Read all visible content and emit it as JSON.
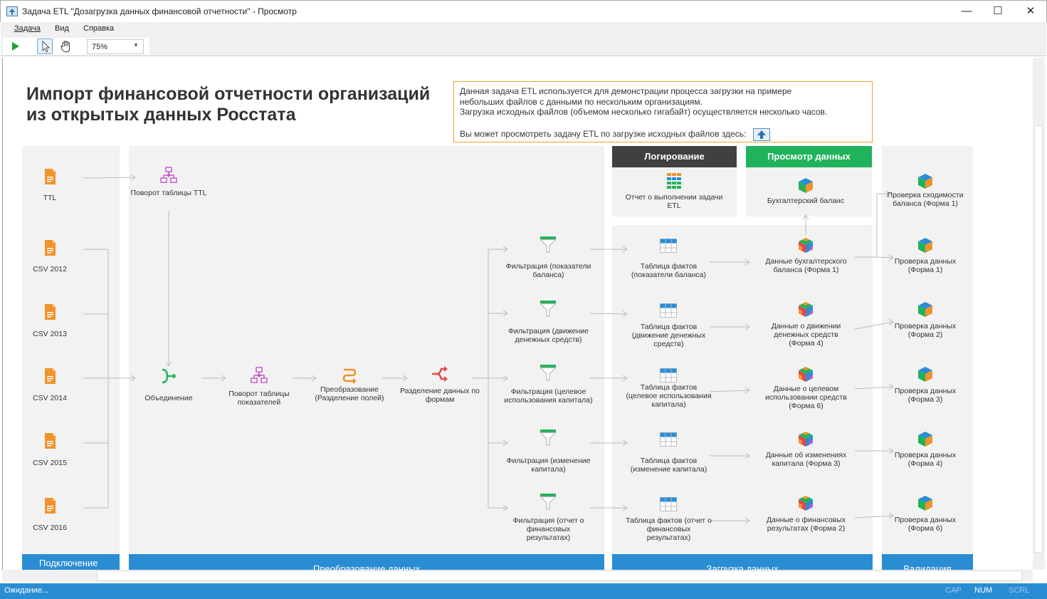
{
  "window": {
    "title": "Задача ETL \"Дозагрузка данных финансовой отчетности\" - Просмотр",
    "minimize": "—",
    "maximize": "☐",
    "close": "✕"
  },
  "menu": [
    "Задача",
    "Вид",
    "Справка"
  ],
  "toolbar": {
    "zoom": "75%"
  },
  "page": {
    "title_line1": "Импорт финансовой отчетности организаций",
    "title_line2": "из открытых данных Росстата",
    "info_lines": [
      "Данная задача ETL используется для демонстрации процесса загрузки на примере",
      "небольших файлов с данными по нескольким организациям.",
      "Загрузка исходных файлов (объемом несколько гигабайт) осуществляется несколько часов.",
      "Вы может просмотреть задачу ETL по загрузке исходных файлов здесь:"
    ]
  },
  "sections": {
    "logging": "Логирование",
    "view": "Просмотр данных",
    "connect": "Подключение",
    "transform": "Преобразование данных",
    "load": "Загрузка данных",
    "validate": "Валидация"
  },
  "colors": {
    "accent": "#2a8dd4",
    "logging_header": "#404040",
    "view_header": "#21b35b",
    "file": "#f0932b",
    "filter": "#21b35b",
    "pivot": "#c259c9",
    "split": "#e8474a",
    "transform": "#f0932b"
  },
  "nodes": [
    {
      "label": "TTL",
      "icon": "file-icon"
    },
    {
      "label": "CSV 2012",
      "icon": "file-icon"
    },
    {
      "label": "CSV 2013",
      "icon": "file-icon"
    },
    {
      "label": "CSV 2014",
      "icon": "file-icon"
    },
    {
      "label": "CSV 2015",
      "icon": "file-icon"
    },
    {
      "label": "CSV 2016",
      "icon": "file-icon"
    },
    {
      "label": "Поворот таблицы TTL",
      "icon": "pivot-icon"
    },
    {
      "label": "Объединение",
      "icon": "merge-icon"
    },
    {
      "label": "Поворот таблицы показателей",
      "icon": "pivot-icon"
    },
    {
      "label": "Преобразование (Разделение полей)",
      "icon": "transform-icon"
    },
    {
      "label": "Разделение данных по формам",
      "icon": "split-icon"
    },
    {
      "label": "Фильтрация (показатели баланса)",
      "icon": "filter-icon"
    },
    {
      "label": "Фильтрация (движение денежных средств)",
      "icon": "filter-icon"
    },
    {
      "label": "Фильтрация (целевое использования капитала)",
      "icon": "filter-icon"
    },
    {
      "label": "Фильтрация (изменение капитала)",
      "icon": "filter-icon"
    },
    {
      "label": "Фильтрация (отчет о финансовых результатах)",
      "icon": "filter-icon"
    },
    {
      "label": "Таблица фактов (показатели баланса)",
      "icon": "table-icon"
    },
    {
      "label": "Таблица фактов (движение денежных средств)",
      "icon": "table-icon"
    },
    {
      "label": "Таблица фактов (целевое использования капитала)",
      "icon": "table-icon"
    },
    {
      "label": "Таблица фактов (изменение капитала)",
      "icon": "table-icon"
    },
    {
      "label": "Таблица фактов (отчет о финансовых результатах)",
      "icon": "table-icon"
    },
    {
      "label": "Данные бухгалтерского баланса (Форма 1)",
      "icon": "multicube-icon"
    },
    {
      "label": "Данные о движении денежных средств (Форма 4)",
      "icon": "multicube-icon"
    },
    {
      "label": "Данные о целевом использовании средств (Форма 6)",
      "icon": "multicube-icon"
    },
    {
      "label": "Данные об изменениях капитала (Форма 3)",
      "icon": "multicube-icon"
    },
    {
      "label": "Данные о финансовых результатах (Форма 2)",
      "icon": "multicube-icon"
    },
    {
      "label": "Проверка сходимости баланса (Форма 1)",
      "icon": "cube-icon"
    },
    {
      "label": "Проверка данных (Форма 1)",
      "icon": "cube-icon"
    },
    {
      "label": "Проверка данных (Форма 2)",
      "icon": "cube-icon"
    },
    {
      "label": "Проверка данных (Форма 3)",
      "icon": "cube-icon"
    },
    {
      "label": "Проверка данных (Форма 4)",
      "icon": "cube-icon"
    },
    {
      "label": "Проверка данных (Форма 6)",
      "icon": "cube-icon"
    },
    {
      "label": "Отчет о выполнении задачи ETL",
      "icon": "report-icon"
    },
    {
      "label": "Бухгалтерский баланс",
      "icon": "cube-icon"
    }
  ],
  "status": {
    "text": "Ожидание...",
    "cap": "CAP",
    "num": "NUM",
    "scrl": "SCRL"
  }
}
